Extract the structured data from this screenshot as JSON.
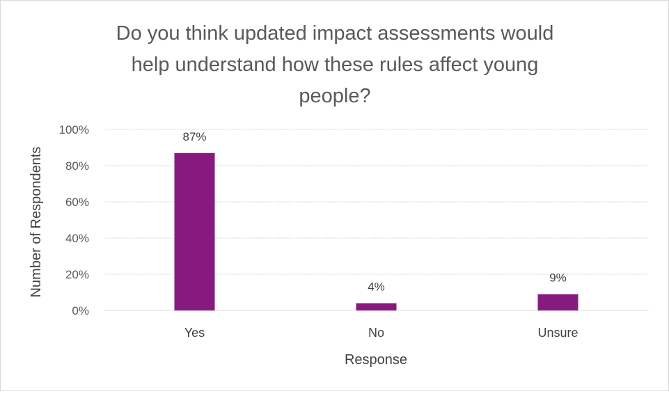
{
  "chart_data": {
    "type": "bar",
    "title_lines": [
      "Do you think updated impact assessments would",
      "help understand how these rules affect young",
      "people?"
    ],
    "categories": [
      "Yes",
      "No",
      "Unsure"
    ],
    "values": [
      0.87,
      0.04,
      0.09
    ],
    "data_labels": [
      "87%",
      "4%",
      "9%"
    ],
    "xlabel": "Response",
    "ylabel": "Number of Respondents",
    "ylim": [
      0,
      1
    ],
    "yticks": [
      "0%",
      "20%",
      "40%",
      "60%",
      "80%",
      "100%"
    ],
    "grid": true,
    "legend": "none",
    "bar_color": "#861a7f"
  }
}
